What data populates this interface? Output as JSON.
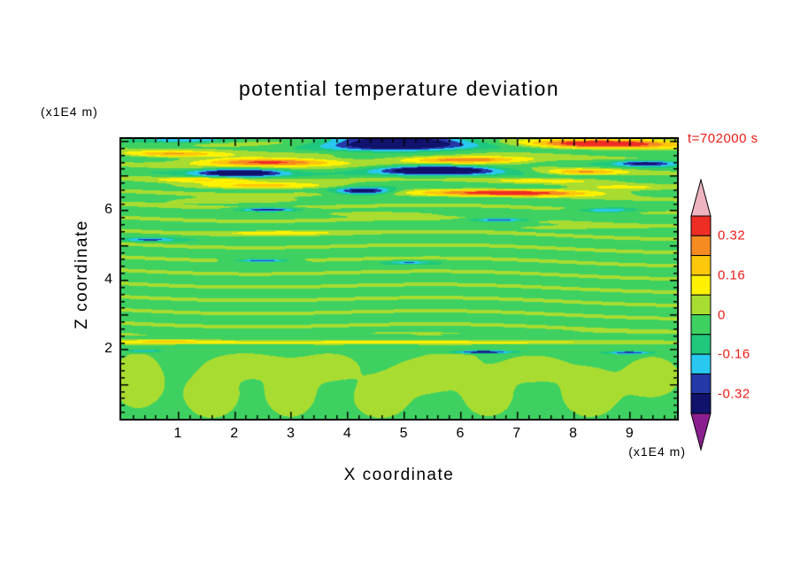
{
  "chart_data": {
    "type": "heatmap",
    "title": "potential temperature deviation",
    "xlabel": "X coordinate",
    "ylabel": "Z coordinate",
    "x_unit_label": "(x1E4 m)",
    "y_unit_label": "(x1E4 m)",
    "timestamp_annotation": "t=702000 s",
    "annotation_color": "#ee1c17",
    "x_range": [
      0,
      9.84
    ],
    "z_range": [
      0,
      8.05
    ],
    "x_tick_labels": [
      "1",
      "2",
      "3",
      "4",
      "5",
      "6",
      "7",
      "8",
      "9"
    ],
    "z_tick_labels": [
      "2",
      "4",
      "6"
    ],
    "minor_tick_step": 0.2,
    "grid": false,
    "colorbar": {
      "tick_labels": [
        "0.32",
        "0.16",
        "0",
        "-0.16",
        "-0.32"
      ],
      "level_step": 0.08,
      "max_level": 0.4
    },
    "levels": [
      -0.4,
      -0.32,
      -0.24,
      -0.16,
      -0.08,
      0,
      0.08,
      0.16,
      0.24,
      0.32,
      0.4
    ],
    "colors": [
      "#8c1f8f",
      "#10126b",
      "#2438a8",
      "#29c8f0",
      "#1fc87d",
      "#3ed162",
      "#a8dc30",
      "#fff100",
      "#fdc70c",
      "#f68b22",
      "#ee2d24",
      "#eeb4c0"
    ],
    "background": -0.03,
    "clamp": [
      -0.395,
      0.395
    ],
    "striations": {
      "amplitude": 0.045,
      "wavelength": 0.38,
      "z_min": 2.4,
      "phase_amp": 1.2,
      "phase_freq": 0.8,
      "drift": 0.3
    },
    "feature_format": [
      "x",
      "z",
      "amplitude",
      "sigma_x",
      "sigma_z"
    ],
    "features": [
      [
        1.1,
        8.02,
        -0.26,
        1.0,
        0.09
      ],
      [
        1.5,
        7.8,
        0.07,
        1.5,
        0.25
      ],
      [
        0.9,
        7.62,
        0.2,
        0.8,
        0.08
      ],
      [
        4.9,
        7.95,
        -0.5,
        1.2,
        0.24
      ],
      [
        8.6,
        7.92,
        0.46,
        1.3,
        0.14
      ],
      [
        2.6,
        7.38,
        0.42,
        1.3,
        0.11
      ],
      [
        2.1,
        7.08,
        -0.45,
        0.75,
        0.11
      ],
      [
        5.6,
        7.15,
        -0.5,
        1.0,
        0.13
      ],
      [
        6.1,
        7.45,
        0.38,
        1.2,
        0.1
      ],
      [
        9.3,
        7.35,
        -0.33,
        0.55,
        0.08
      ],
      [
        8.2,
        7.1,
        0.25,
        0.7,
        0.09
      ],
      [
        1.5,
        6.88,
        0.16,
        0.9,
        0.08
      ],
      [
        2.5,
        6.7,
        0.24,
        1.4,
        0.09
      ],
      [
        7.6,
        6.85,
        0.12,
        1.2,
        0.08
      ],
      [
        6.9,
        6.5,
        0.4,
        1.6,
        0.1
      ],
      [
        4.3,
        6.55,
        -0.42,
        0.5,
        0.1
      ],
      [
        2.0,
        6.28,
        0.15,
        1.3,
        0.08
      ],
      [
        2.6,
        6.02,
        -0.35,
        0.5,
        0.05
      ],
      [
        8.6,
        6.0,
        -0.25,
        0.5,
        0.06
      ],
      [
        8.8,
        6.65,
        0.12,
        0.8,
        0.08
      ],
      [
        6.7,
        5.72,
        -0.3,
        0.5,
        0.05
      ],
      [
        4.5,
        5.9,
        0.13,
        1.1,
        0.07
      ],
      [
        2.8,
        5.35,
        0.15,
        1.0,
        0.06
      ],
      [
        7.8,
        5.5,
        0.12,
        1.0,
        0.06
      ],
      [
        0.5,
        5.15,
        -0.22,
        0.45,
        0.05
      ],
      [
        2.5,
        4.55,
        -0.32,
        0.45,
        0.045
      ],
      [
        5.1,
        4.5,
        -0.2,
        0.4,
        0.04
      ],
      [
        4.9,
        2.2,
        0.15,
        5.5,
        0.055
      ],
      [
        0.8,
        2.22,
        0.14,
        0.9,
        0.06
      ],
      [
        4.0,
        2.48,
        0.07,
        4.5,
        0.05
      ],
      [
        6.4,
        1.92,
        -0.35,
        0.55,
        0.045
      ],
      [
        9.0,
        1.9,
        -0.3,
        0.4,
        0.045
      ],
      [
        0.4,
        1.95,
        -0.22,
        0.3,
        0.04
      ],
      [
        0.3,
        1.1,
        0.08,
        0.45,
        0.8
      ],
      [
        1.6,
        0.7,
        0.075,
        0.5,
        0.7
      ],
      [
        2.2,
        1.55,
        0.07,
        0.6,
        0.35
      ],
      [
        3.0,
        0.8,
        0.08,
        0.45,
        0.75
      ],
      [
        3.7,
        1.5,
        0.07,
        0.5,
        0.4
      ],
      [
        4.6,
        0.6,
        0.075,
        0.5,
        0.6
      ],
      [
        5.4,
        1.25,
        0.08,
        0.6,
        0.5
      ],
      [
        5.9,
        1.7,
        0.06,
        0.4,
        0.3
      ],
      [
        6.5,
        0.7,
        0.075,
        0.45,
        0.65
      ],
      [
        7.3,
        1.45,
        0.07,
        0.6,
        0.4
      ],
      [
        8.3,
        0.75,
        0.08,
        0.5,
        0.7
      ],
      [
        9.4,
        1.2,
        0.075,
        0.5,
        0.6
      ]
    ]
  }
}
